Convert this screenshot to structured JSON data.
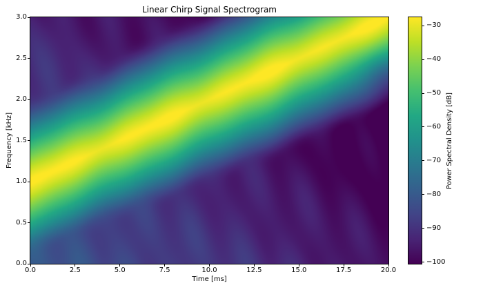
{
  "figure": {
    "title": "Linear Chirp Signal Spectrogram",
    "background": "#ffffff",
    "text_color": "#000000"
  },
  "chart_data": {
    "type": "heatmap",
    "title": "Linear Chirp Signal Spectrogram",
    "xlabel": "Time [ms]",
    "ylabel": "Frequency [kHz]",
    "x_range": [
      0.0,
      20.0
    ],
    "y_range": [
      0.0,
      3.0
    ],
    "grid": false,
    "x_ticks": {
      "values": [
        0.0,
        2.5,
        5.0,
        7.5,
        10.0,
        12.5,
        15.0,
        17.5,
        20.0
      ],
      "labels": [
        "0.0",
        "2.5",
        "5.0",
        "7.5",
        "10.0",
        "12.5",
        "15.0",
        "17.5",
        "20.0"
      ]
    },
    "y_ticks": {
      "values": [
        0.0,
        0.5,
        1.0,
        1.5,
        2.0,
        2.5,
        3.0
      ],
      "labels": [
        "0.0",
        "0.5",
        "1.0",
        "1.5",
        "2.0",
        "2.5",
        "3.0"
      ]
    },
    "colorbar": {
      "label": "Power Spectral Density [dB]",
      "position": "right",
      "vmin": -100.5,
      "vmax": -27.5,
      "tick_values": [
        -30,
        -40,
        -50,
        -60,
        -70,
        -80,
        -90,
        -100
      ],
      "tick_labels": [
        "−30",
        "−40",
        "−50",
        "−60",
        "−70",
        "−80",
        "−90",
        "−100"
      ]
    },
    "colormap": {
      "name": "viridis",
      "stops": [
        [
          0.0,
          "#440154"
        ],
        [
          0.1,
          "#482475"
        ],
        [
          0.2,
          "#414487"
        ],
        [
          0.3,
          "#355f8d"
        ],
        [
          0.4,
          "#2a788e"
        ],
        [
          0.5,
          "#21918c"
        ],
        [
          0.6,
          "#22a884"
        ],
        [
          0.7,
          "#44bf70"
        ],
        [
          0.8,
          "#7ad151"
        ],
        [
          0.9,
          "#bddf26"
        ],
        [
          1.0,
          "#fde725"
        ]
      ]
    },
    "signal_model": {
      "description": "linear chirp ridge rising from 1 kHz at 0 ms to 3 kHz at 20 ms; peak PSD ~ -27.5 dB along ridge; noise floor ~ -81 dB at origin falling to ~ -97 dB bottom-right and ~ -93 dB top-left; dark smudge near t=19.6 ms, f=2.35 kHz",
      "f0_khz": 1.0,
      "f1_khz": 3.0,
      "t_end_ms": 20.0,
      "peak_db": -27.5,
      "ridge_coef": 70,
      "ridge_exp": 1.25,
      "floor_base_db": -81,
      "floor_slope_per_ms": -0.8,
      "floor_slope_per_khz": -4,
      "noise_amp_db": 2.2,
      "smudge": {
        "t_ms": 19.6,
        "f_khz": 2.35,
        "depth_db": 10
      }
    }
  }
}
